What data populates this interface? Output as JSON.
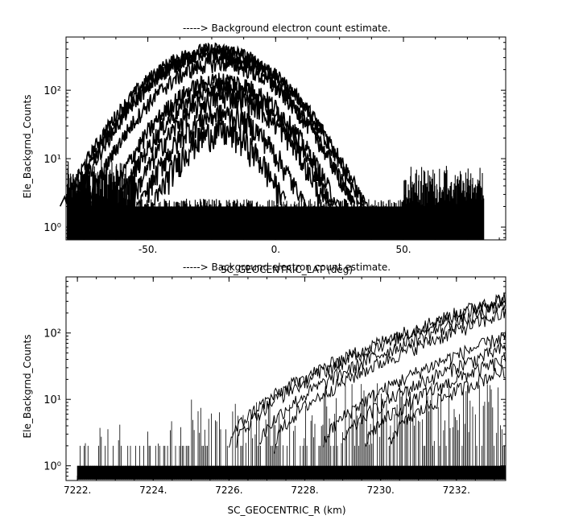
{
  "chart_data": [
    {
      "type": "line",
      "title": "-----> Background electron count estimate.",
      "xlabel": "SC_GEOCENTRIC_LAT (deg)",
      "ylabel": "Ele_Backgrnd_Counts",
      "xlim": [
        -82,
        90
      ],
      "ylim": [
        0.65,
        600
      ],
      "yscale": "log",
      "grid": false,
      "xticks": [
        -50,
        0,
        50
      ],
      "xtick_labels": [
        "-50.",
        "0.",
        "50."
      ],
      "yticks": [
        1,
        10,
        100
      ],
      "ytick_labels": [
        "10⁰",
        "10¹",
        "10²"
      ],
      "data_extent_x": [
        -81.5,
        81.5
      ],
      "series": [
        {
          "peak_x": -24,
          "peak_y": 400,
          "width": 27,
          "noise": 0.06
        },
        {
          "peak_x": -23,
          "peak_y": 360,
          "width": 26,
          "noise": 0.06
        },
        {
          "peak_x": -25,
          "peak_y": 330,
          "width": 26,
          "noise": 0.06
        },
        {
          "peak_x": -22,
          "peak_y": 250,
          "width": 25,
          "noise": 0.07
        },
        {
          "peak_x": -21,
          "peak_y": 140,
          "width": 23,
          "noise": 0.08
        },
        {
          "peak_x": -20,
          "peak_y": 110,
          "width": 22,
          "noise": 0.08
        },
        {
          "peak_x": -19,
          "peak_y": 80,
          "width": 21,
          "noise": 0.09
        },
        {
          "peak_x": -21,
          "peak_y": 45,
          "width": 19,
          "noise": 0.1
        },
        {
          "peak_x": -22,
          "peak_y": 25,
          "width": 17,
          "noise": 0.12
        }
      ],
      "background_bands": [
        {
          "x_from": -81.5,
          "x_to": -55,
          "y_max": 12
        },
        {
          "x_from": 50,
          "x_to": 81.5,
          "y_max": 8
        }
      ]
    },
    {
      "type": "line",
      "title": "-----> Background electron count estimate.",
      "xlabel": "SC_GEOCENTRIC_R (km)",
      "ylabel": "Ele_Backgrnd_Counts",
      "xlim": [
        7221.7,
        7233.3
      ],
      "ylim": [
        0.6,
        700
      ],
      "yscale": "log",
      "grid": false,
      "xticks": [
        7222,
        7224,
        7226,
        7228,
        7230,
        7232
      ],
      "xtick_labels": [
        "7222.",
        "7224.",
        "7226.",
        "7228.",
        "7230.",
        "7232."
      ],
      "yticks": [
        1,
        10,
        100
      ],
      "ytick_labels": [
        "10⁰",
        "10¹",
        "10²"
      ],
      "data_extent_x": [
        7222,
        7233.3
      ],
      "series": [
        {
          "onset_x": 7226.0,
          "end_y": 350
        },
        {
          "onset_x": 7226.2,
          "end_y": 330
        },
        {
          "onset_x": 7226.8,
          "end_y": 260
        },
        {
          "onset_x": 7227.2,
          "end_y": 200
        },
        {
          "onset_x": 7228.5,
          "end_y": 90
        },
        {
          "onset_x": 7229.0,
          "end_y": 60
        },
        {
          "onset_x": 7229.6,
          "end_y": 40
        },
        {
          "onset_x": 7230.2,
          "end_y": 28
        }
      ]
    }
  ]
}
